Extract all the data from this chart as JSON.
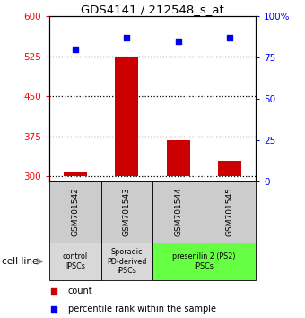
{
  "title": "GDS4141 / 212548_s_at",
  "samples": [
    "GSM701542",
    "GSM701543",
    "GSM701544",
    "GSM701545"
  ],
  "counts": [
    307,
    525,
    368,
    328
  ],
  "percentiles": [
    80,
    87,
    85,
    87
  ],
  "ylim_left": [
    290,
    600
  ],
  "ylim_right": [
    0,
    100
  ],
  "yticks_left": [
    300,
    375,
    450,
    525,
    600
  ],
  "yticks_right": [
    0,
    25,
    50,
    75,
    100
  ],
  "ytick_labels_right": [
    "0",
    "25",
    "50",
    "75",
    "100%"
  ],
  "bar_color": "#cc0000",
  "dot_color": "#0000ee",
  "bar_bottom": 300,
  "group_defs": [
    {
      "span": [
        0,
        1
      ],
      "label": "control\nIPSCs",
      "color": "#d8d8d8"
    },
    {
      "span": [
        1,
        2
      ],
      "label": "Sporadic\nPD-derived\niPSCs",
      "color": "#d8d8d8"
    },
    {
      "span": [
        2,
        4
      ],
      "label": "presenilin 2 (PS2)\niPSCs",
      "color": "#66ff44"
    }
  ],
  "cell_line_label": "cell line",
  "legend_count_label": "count",
  "legend_pct_label": "percentile rank within the sample"
}
